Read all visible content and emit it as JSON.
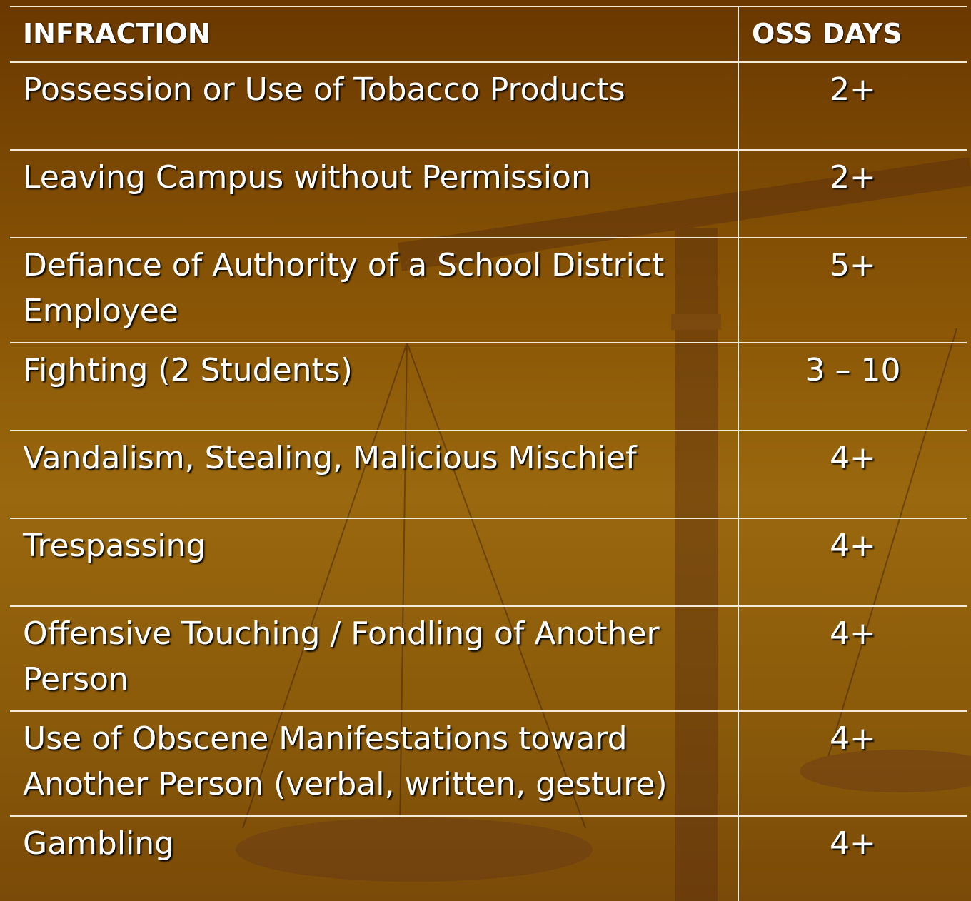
{
  "table": {
    "header": [
      "INFRACTION",
      "OSS DAYS"
    ],
    "rows": [
      [
        "Possession or Use of Tobacco Products",
        "2+"
      ],
      [
        "Leaving Campus without Permission",
        "2+"
      ],
      [
        "Defiance of Authority of a School District Employee",
        "5+"
      ],
      [
        "Fighting (2 Students)",
        "3 – 10"
      ],
      [
        "Vandalism, Stealing, Malicious Mischief",
        "4+"
      ],
      [
        "Trespassing",
        "4+"
      ],
      [
        "Offensive Touching / Fondling of Another Person",
        "4+"
      ],
      [
        "Use of Obscene Manifestations toward Another Person (verbal, written, gesture)",
        "4+"
      ],
      [
        "Gambling",
        "4+"
      ]
    ]
  }
}
